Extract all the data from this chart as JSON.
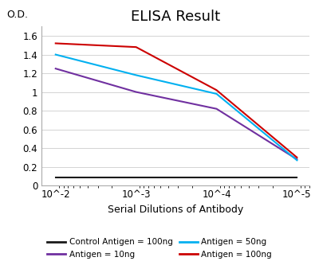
{
  "title": "ELISA Result",
  "ylabel": "O.D.",
  "xlabel": "Serial Dilutions of Antibody",
  "x_values": [
    0.01,
    0.001,
    0.0001,
    1e-05
  ],
  "x_ticks": [
    0.01,
    0.001,
    0.0001,
    1e-05
  ],
  "x_tick_labels": [
    "10^-2",
    "10^-3",
    "10^-4",
    "10^-5"
  ],
  "ylim": [
    0,
    1.7
  ],
  "y_ticks": [
    0,
    0.2,
    0.4,
    0.6,
    0.8,
    1.0,
    1.2,
    1.4,
    1.6
  ],
  "y_tick_labels": [
    "0",
    "0.2",
    "0.4",
    "0.6",
    "0.8",
    "1",
    "1.2",
    "1.4",
    "1.6"
  ],
  "lines": [
    {
      "label": "Control Antigen = 100ng",
      "color": "#1a1a1a",
      "values": [
        0.09,
        0.09,
        0.09,
        0.09
      ]
    },
    {
      "label": "Antigen = 10ng",
      "color": "#7030a0",
      "values": [
        1.25,
        1.0,
        0.82,
        0.28
      ]
    },
    {
      "label": "Antigen = 50ng",
      "color": "#00b0f0",
      "values": [
        1.4,
        1.18,
        0.98,
        0.27
      ]
    },
    {
      "label": "Antigen = 100ng",
      "color": "#cc0000",
      "values": [
        1.52,
        1.48,
        1.02,
        0.3
      ]
    }
  ],
  "legend_order": [
    0,
    1,
    2,
    3
  ],
  "bg_color": "#ffffff",
  "title_fontsize": 13,
  "label_fontsize": 9,
  "tick_fontsize": 8.5,
  "legend_fontsize": 7.5
}
